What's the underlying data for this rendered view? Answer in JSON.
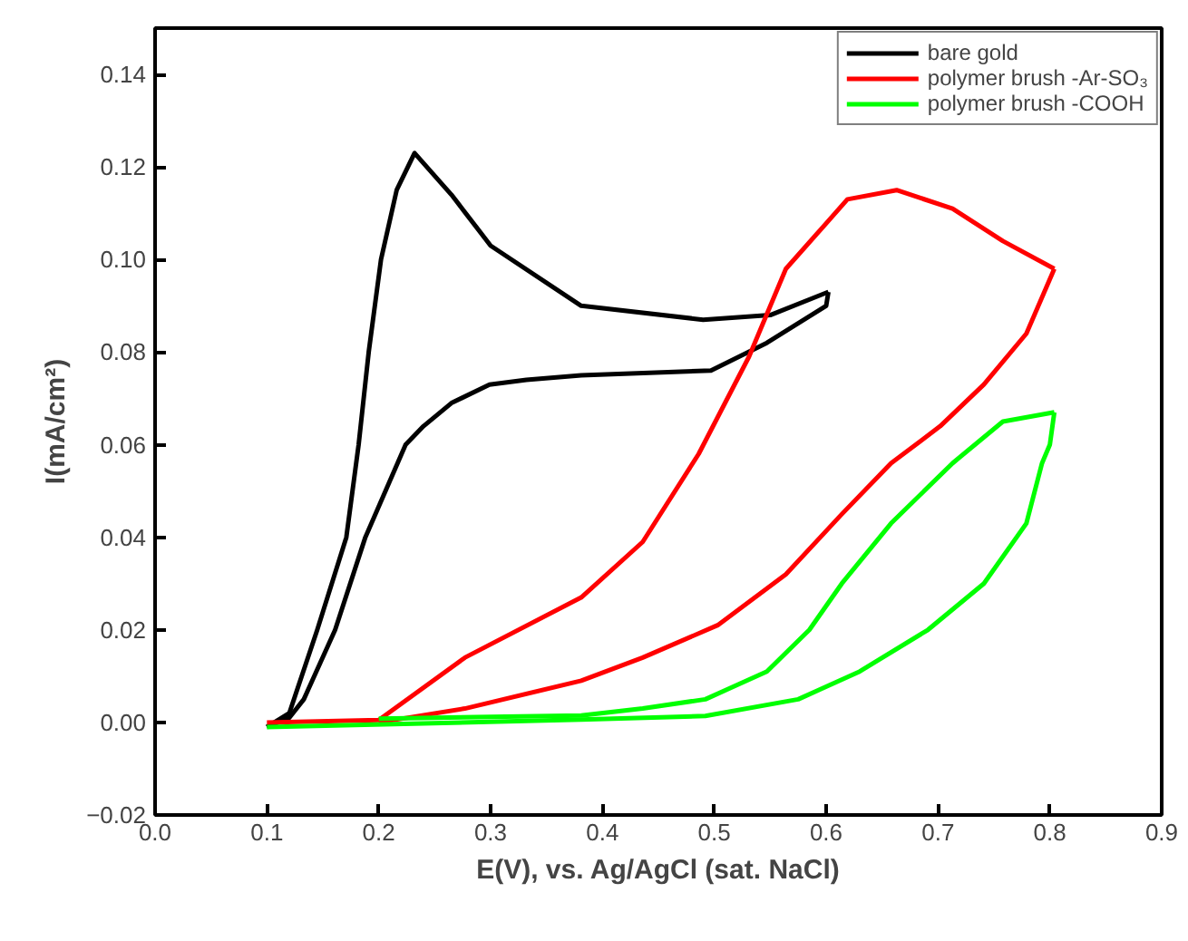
{
  "chart_data": {
    "type": "line",
    "xlabel": "E(V), vs. Ag/AgCl (sat. NaCl)",
    "ylabel": "I(mA/cm²)",
    "xlim": [
      0,
      0.9
    ],
    "ylim": [
      -0.02,
      0.15
    ],
    "xticks": [
      {
        "value": 0,
        "label": "0.0"
      },
      {
        "value": 0.1,
        "label": "0.1"
      },
      {
        "value": 0.2,
        "label": "0.2"
      },
      {
        "value": 0.3,
        "label": "0.3"
      },
      {
        "value": 0.4,
        "label": "0.4"
      },
      {
        "value": 0.5,
        "label": "0.5"
      },
      {
        "value": 0.6,
        "label": "0.6"
      },
      {
        "value": 0.7,
        "label": "0.7"
      },
      {
        "value": 0.8,
        "label": "0.8"
      },
      {
        "value": 0.9,
        "label": "0.9"
      }
    ],
    "yticks": [
      -0.02,
      {
        "value": 0,
        "label": "0.00"
      },
      {
        "value": 0.02,
        "label": "0.02"
      },
      {
        "value": 0.04,
        "label": "0.04"
      },
      {
        "value": 0.06,
        "label": "0.06"
      },
      {
        "value": 0.08,
        "label": "0.08"
      },
      {
        "value": 0.1,
        "label": "0.10"
      },
      {
        "value": 0.12,
        "label": "0.12"
      },
      {
        "value": 0.14,
        "label": "0.14"
      }
    ],
    "grid": false,
    "legend": "top right",
    "marker": "none",
    "line_style": "solid",
    "series": [
      {
        "name": "bare gold",
        "color": "#000000",
        "x": [
          0.1,
          0.12,
          0.145,
          0.171,
          0.182,
          0.191,
          0.202,
          0.216,
          0.232,
          0.265,
          0.3,
          0.381,
          0.49,
          0.55,
          0.602
        ],
        "values": [
          -0.001,
          0.002,
          0.02,
          0.04,
          0.06,
          0.08,
          0.1,
          0.115,
          0.123,
          0.114,
          0.103,
          0.09,
          0.087,
          0.088,
          0.093
        ]
      },
      {
        "color": "#000000",
        "x": [
          0.602,
          0.6,
          0.547,
          0.497,
          0.381,
          0.332,
          0.299,
          0.265,
          0.24,
          0.224,
          0.188,
          0.161,
          0.133,
          0.12,
          0.1
        ],
        "values": [
          0.093,
          0.09,
          0.082,
          0.076,
          0.075,
          0.074,
          0.073,
          0.069,
          0.064,
          0.06,
          0.04,
          0.02,
          0.005,
          0.001,
          -0.001
        ]
      },
      {
        "name": "polymer brush -Ar-SO₃",
        "color": "#ff0000",
        "x": [
          0.1,
          0.2,
          0.277,
          0.381,
          0.436,
          0.486,
          0.531,
          0.564,
          0.597,
          0.619,
          0.663,
          0.713,
          0.758,
          0.804
        ],
        "values": [
          0,
          0.0005,
          0.014,
          0.027,
          0.039,
          0.058,
          0.079,
          0.098,
          0.107,
          0.113,
          0.115,
          0.111,
          0.104,
          0.098
        ]
      },
      {
        "color": "#ff0000",
        "x": [
          0.804,
          0.779,
          0.741,
          0.702,
          0.658,
          0.614,
          0.564,
          0.503,
          0.436,
          0.381,
          0.277,
          0.2
        ],
        "values": [
          0.098,
          0.084,
          0.073,
          0.064,
          0.056,
          0.045,
          0.032,
          0.021,
          0.014,
          0.009,
          0.003,
          0
        ]
      },
      {
        "name": "polymer brush -COOH",
        "color": "#00ff00",
        "x": [
          0.1,
          0.381,
          0.492,
          0.575,
          0.63,
          0.691,
          0.741,
          0.779,
          0.793,
          0.8,
          0.804
        ],
        "values": [
          -0.001,
          0.0006,
          0.0014,
          0.005,
          0.011,
          0.02,
          0.03,
          0.043,
          0.056,
          0.06,
          0.067
        ]
      },
      {
        "color": "#00ff00",
        "x": [
          0.804,
          0.758,
          0.713,
          0.658,
          0.614,
          0.585,
          0.547,
          0.492,
          0.436,
          0.381,
          0.2
        ],
        "values": [
          0.067,
          0.065,
          0.056,
          0.043,
          0.03,
          0.02,
          0.011,
          0.005,
          0.003,
          0.0015,
          0.0008
        ]
      }
    ]
  }
}
